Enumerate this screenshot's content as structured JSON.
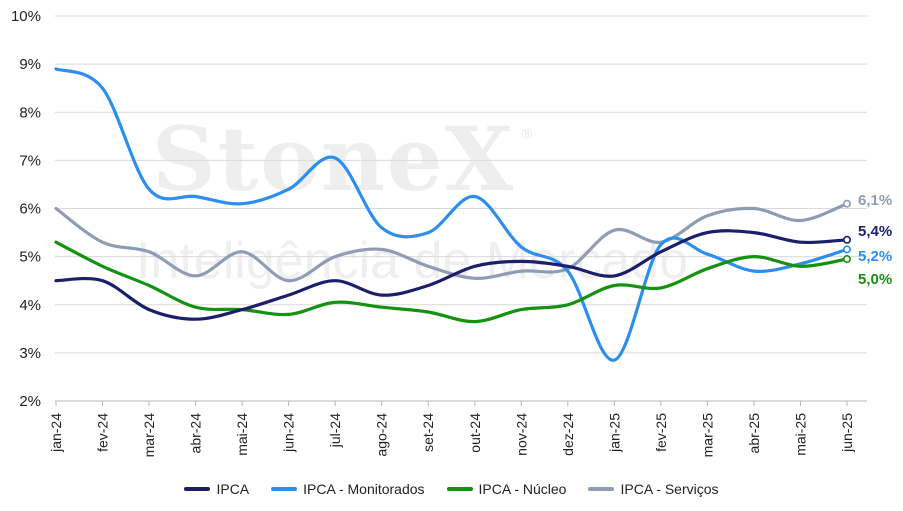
{
  "chart_data": {
    "type": "line",
    "categories": [
      "jan-24",
      "fev-24",
      "mar-24",
      "abr-24",
      "mai-24",
      "jun-24",
      "jul-24",
      "ago-24",
      "set-24",
      "out-24",
      "nov-24",
      "dez-24",
      "jan-25",
      "fev-25",
      "mar-25",
      "abr-25",
      "mai-25",
      "jun-25"
    ],
    "y_ticks": [
      "2%",
      "3%",
      "4%",
      "5%",
      "6%",
      "7%",
      "8%",
      "9%",
      "10%"
    ],
    "ylim": [
      2,
      10
    ],
    "grid": true,
    "legend_position": "bottom",
    "series": [
      {
        "name": "IPCA",
        "color": "#1b1f6b",
        "values": [
          4.5,
          4.5,
          3.9,
          3.7,
          3.9,
          4.2,
          4.5,
          4.2,
          4.4,
          4.8,
          4.9,
          4.8,
          4.6,
          5.1,
          5.5,
          5.5,
          5.3,
          5.35
        ],
        "end_label": "5,4%"
      },
      {
        "name": "IPCA - Monitorados",
        "color": "#2c8ff0",
        "values": [
          8.9,
          8.5,
          6.4,
          6.25,
          6.1,
          6.4,
          7.05,
          5.6,
          5.5,
          6.25,
          5.2,
          4.7,
          2.85,
          5.25,
          5.05,
          4.7,
          4.85,
          5.15
        ],
        "end_label": "5,2%"
      },
      {
        "name": "IPCA - Núcleo",
        "color": "#13910f",
        "values": [
          5.3,
          4.8,
          4.4,
          3.95,
          3.9,
          3.8,
          4.05,
          3.95,
          3.85,
          3.65,
          3.9,
          4.0,
          4.4,
          4.35,
          4.75,
          5.0,
          4.8,
          4.95
        ],
        "end_label": "5,0%"
      },
      {
        "name": "IPCA - Serviços",
        "color": "#8e9cb5",
        "values": [
          6.0,
          5.3,
          5.1,
          4.6,
          5.1,
          4.5,
          5.0,
          5.15,
          4.8,
          4.55,
          4.7,
          4.75,
          5.55,
          5.3,
          5.85,
          6.0,
          5.75,
          6.1
        ],
        "end_label": "6,1%"
      }
    ]
  },
  "watermark": {
    "brand": "StoneX",
    "registered": "®",
    "subtitle": "Inteligência de Mercado"
  }
}
